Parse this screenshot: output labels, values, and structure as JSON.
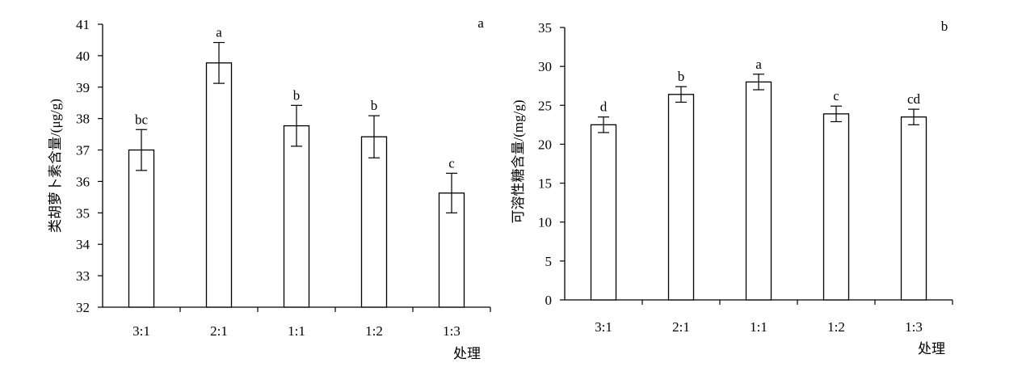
{
  "chart_data": [
    {
      "type": "bar",
      "panel_label": "a",
      "categories": [
        "3:1",
        "2:1",
        "1:1",
        "1:2",
        "1:3"
      ],
      "values": [
        37.0,
        39.77,
        37.77,
        37.42,
        35.63
      ],
      "errors": [
        0.65,
        0.65,
        0.65,
        0.67,
        0.63
      ],
      "significance": [
        "bc",
        "a",
        "b",
        "b",
        "c"
      ],
      "ylabel": "类胡萝卜素含量/(μg/g)",
      "xlabel": "处理",
      "ylim": [
        32,
        41
      ],
      "yticks": [
        32,
        33,
        34,
        35,
        36,
        37,
        38,
        39,
        40,
        41
      ],
      "grid": false,
      "bar_fill": "#ffffff",
      "bar_stroke": "#000000"
    },
    {
      "type": "bar",
      "panel_label": "b",
      "categories": [
        "3:1",
        "2:1",
        "1:1",
        "1:2",
        "1:3"
      ],
      "values": [
        22.5,
        26.4,
        28.0,
        23.9,
        23.5
      ],
      "errors": [
        1.0,
        1.0,
        1.0,
        1.0,
        1.0
      ],
      "significance": [
        "d",
        "b",
        "a",
        "c",
        "cd"
      ],
      "ylabel": "可溶性糖含量/(mg/g)",
      "xlabel": "处理",
      "ylim": [
        0,
        35
      ],
      "yticks": [
        0,
        5,
        10,
        15,
        20,
        25,
        30,
        35
      ],
      "grid": false,
      "bar_fill": "#ffffff",
      "bar_stroke": "#000000"
    }
  ]
}
